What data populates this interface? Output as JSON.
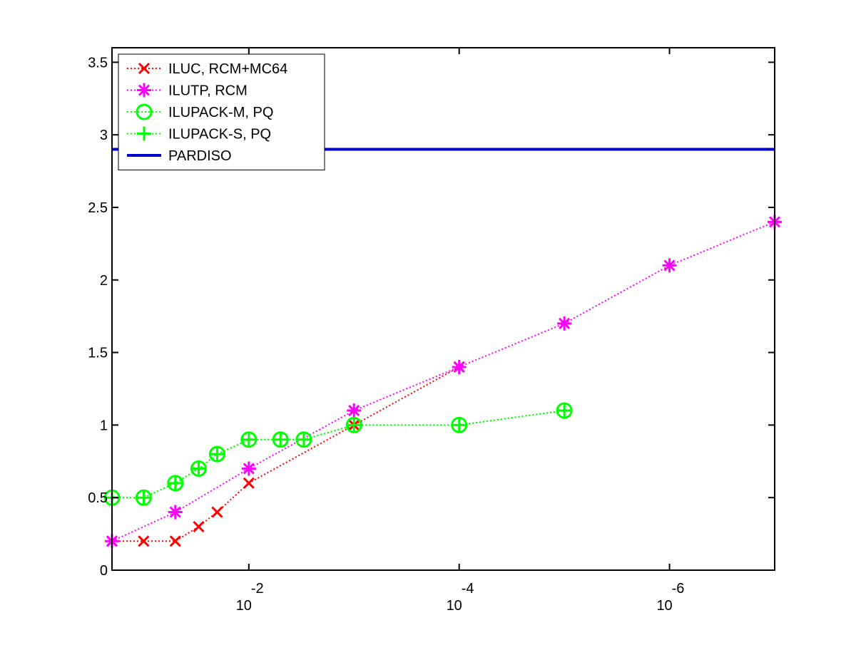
{
  "chart_data": {
    "type": "line",
    "x_scale": "log",
    "x_reversed": true,
    "xlim": [
      0.2,
      1e-07
    ],
    "ylim": [
      0,
      3.6
    ],
    "x_ticks": [
      {
        "value": 0.01,
        "base": "10",
        "exp": "-2"
      },
      {
        "value": 0.0001,
        "base": "10",
        "exp": "-4"
      },
      {
        "value": 1e-06,
        "base": "10",
        "exp": "-6"
      }
    ],
    "y_ticks": [
      0,
      0.5,
      1,
      1.5,
      2,
      2.5,
      3,
      3.5
    ],
    "y_tick_labels": [
      "0",
      "0.5",
      "1",
      "1.5",
      "2",
      "2.5",
      "3",
      "3.5"
    ],
    "xlabel": "",
    "ylabel": "",
    "title": "",
    "legend": {
      "position": "top-left"
    },
    "series": [
      {
        "name": "ILUC, RCM+MC64",
        "color": "#ff0000",
        "marker": "x",
        "line": "dotted",
        "x": [
          0.2,
          0.1,
          0.05,
          0.03,
          0.02,
          0.01,
          0.001,
          0.0001
        ],
        "y": [
          0.2,
          0.2,
          0.2,
          0.3,
          0.4,
          0.6,
          1.0,
          1.4
        ]
      },
      {
        "name": "ILUTP, RCM",
        "color": "#ff00ff",
        "marker": "asterisk",
        "line": "dotted",
        "x": [
          0.2,
          0.05,
          0.01,
          0.001,
          0.0001,
          1e-05,
          1e-06,
          1e-07
        ],
        "y": [
          0.2,
          0.4,
          0.7,
          1.1,
          1.4,
          1.7,
          2.1,
          2.4
        ]
      },
      {
        "name": "ILUPACK-M, PQ",
        "color": "#00ff00",
        "marker": "circle",
        "line": "dotted",
        "x": [
          0.2,
          0.1,
          0.05,
          0.03,
          0.02,
          0.01,
          0.005,
          0.003,
          0.001,
          0.0001,
          1e-05
        ],
        "y": [
          0.5,
          0.5,
          0.6,
          0.7,
          0.8,
          0.9,
          0.9,
          0.9,
          1.0,
          1.0,
          1.1
        ]
      },
      {
        "name": "ILUPACK-S, PQ",
        "color": "#00ff00",
        "marker": "plus",
        "line": "dotted",
        "x": [
          0.2,
          0.1,
          0.05,
          0.03,
          0.02,
          0.01,
          0.005,
          0.003,
          0.001,
          0.0001,
          1e-05
        ],
        "y": [
          0.5,
          0.5,
          0.6,
          0.7,
          0.8,
          0.9,
          0.9,
          0.9,
          1.0,
          1.0,
          1.1
        ]
      },
      {
        "name": "PARDISO",
        "color": "#0000cc",
        "marker": "none",
        "line": "solid",
        "x": [
          0.2,
          1e-07
        ],
        "y": [
          2.9,
          2.9
        ]
      }
    ]
  }
}
